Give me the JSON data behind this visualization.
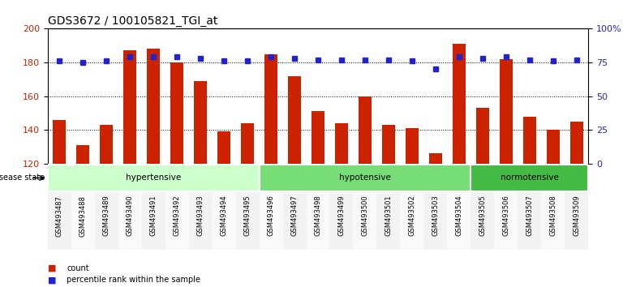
{
  "title": "GDS3672 / 100105821_TGI_at",
  "samples": [
    "GSM493487",
    "GSM493488",
    "GSM493489",
    "GSM493490",
    "GSM493491",
    "GSM493492",
    "GSM493493",
    "GSM493494",
    "GSM493495",
    "GSM493496",
    "GSM493497",
    "GSM493498",
    "GSM493499",
    "GSM493500",
    "GSM493501",
    "GSM493502",
    "GSM493503",
    "GSM493504",
    "GSM493505",
    "GSM493506",
    "GSM493507",
    "GSM493508",
    "GSM493509"
  ],
  "counts": [
    146,
    131,
    143,
    187,
    188,
    180,
    169,
    139,
    144,
    185,
    172,
    151,
    144,
    160,
    143,
    141,
    126,
    191,
    153,
    182,
    148,
    140,
    145
  ],
  "percentiles": [
    76,
    75,
    76,
    79,
    79,
    79,
    78,
    76,
    76,
    79,
    78,
    77,
    77,
    77,
    77,
    76,
    70,
    79,
    78,
    79,
    77,
    76,
    77
  ],
  "groups": [
    {
      "label": "hypertensive",
      "start": 0,
      "end": 8,
      "color": "#ccffcc"
    },
    {
      "label": "hypotensive",
      "start": 9,
      "end": 17,
      "color": "#77dd77"
    },
    {
      "label": "normotensive",
      "start": 18,
      "end": 22,
      "color": "#44bb44"
    }
  ],
  "bar_color": "#cc2200",
  "dot_color": "#2222cc",
  "ylim_left": [
    120,
    200
  ],
  "ylim_right": [
    0,
    100
  ],
  "yticks_left": [
    120,
    140,
    160,
    180,
    200
  ],
  "yticks_right": [
    0,
    25,
    50,
    75,
    100
  ],
  "ytick_labels_right": [
    "0",
    "25",
    "50",
    "75",
    "100%"
  ],
  "grid_lines": [
    140,
    160,
    180
  ],
  "title_fontsize": 10,
  "label_count": "count",
  "label_percentile": "percentile rank within the sample",
  "disease_state_label": "disease state"
}
